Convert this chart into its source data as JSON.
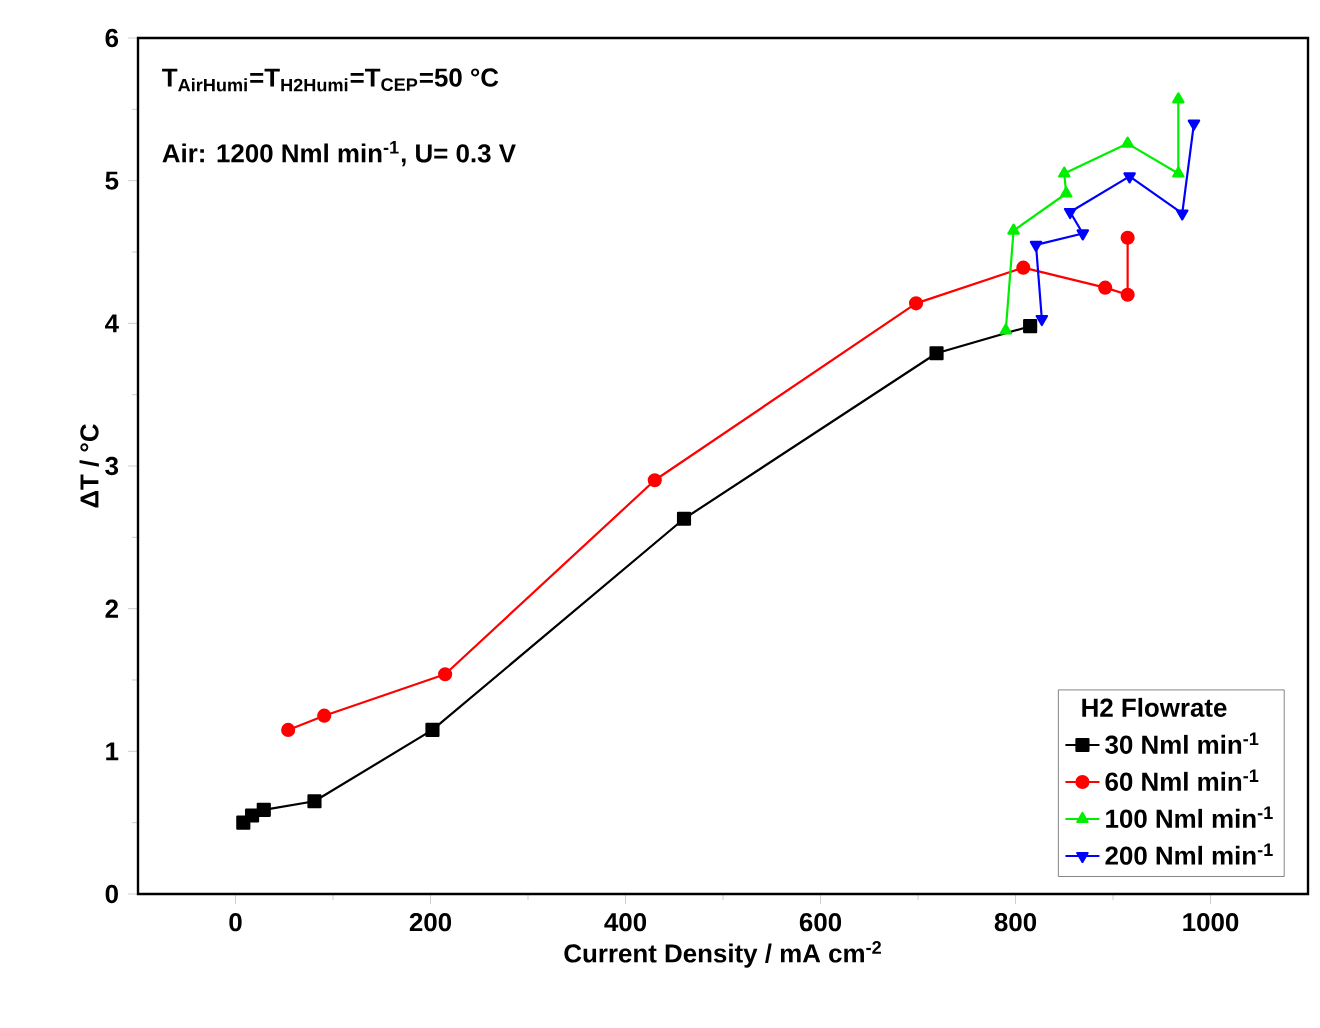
{
  "chart_data": {
    "type": "line",
    "xlabel": "Current Density / mA cm$^{-2}$",
    "ylabel": "ΔT / °C",
    "legend_title": "H2 Flowrate",
    "annotations": [
      "T$_{AirHumi}$=T$_{H2Humi}$=T$_{CEP}$=50 °C",
      "Air: 1200 Nml min$^{-1}$,  U= 0.3 V"
    ],
    "xlim": [
      -100,
      1100
    ],
    "xticks": [
      0,
      200,
      400,
      600,
      800,
      1000
    ],
    "ylim": [
      0,
      6
    ],
    "yticks": [
      0,
      1,
      2,
      3,
      4,
      5,
      6
    ],
    "legend": "bottom right",
    "series": [
      {
        "name": "30   Nml min$^{-1}$",
        "color": "#000000",
        "marker": "square",
        "x": [
          8,
          17,
          29,
          81,
          202,
          460,
          719,
          815
        ],
        "values": [
          0.5,
          0.55,
          0.59,
          0.65,
          1.15,
          2.63,
          3.79,
          3.98
        ]
      },
      {
        "name": "60   Nml min$^{-1}$",
        "color": "#ff0000",
        "marker": "circle",
        "x": [
          54,
          91,
          215,
          430,
          698,
          808,
          892,
          915,
          915
        ],
        "values": [
          1.15,
          1.25,
          1.54,
          2.9,
          4.14,
          4.39,
          4.25,
          4.2,
          4.6
        ]
      },
      {
        "name": "100  Nml min$^{-1}$",
        "color": "#00ee00",
        "marker": "triangle",
        "x": [
          790,
          798,
          852,
          850,
          915,
          967,
          967
        ],
        "values": [
          3.95,
          4.65,
          4.91,
          5.05,
          5.26,
          5.05,
          5.57
        ]
      },
      {
        "name": "200  Nml min$^{-1}$",
        "color": "#0000ff",
        "marker": "triangle down",
        "x": [
          827,
          821,
          869,
          856,
          917,
          971,
          983
        ],
        "values": [
          4.03,
          4.55,
          4.63,
          4.78,
          5.03,
          4.77,
          5.4
        ]
      }
    ]
  }
}
